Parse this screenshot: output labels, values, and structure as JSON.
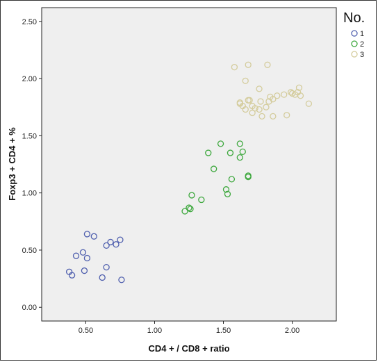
{
  "chart_data": {
    "type": "scatter",
    "title": "",
    "xlabel": "CD4 + / CD8 +  ratio",
    "ylabel": "Foxp3 + CD4 + %",
    "xlim": [
      0.18,
      2.32
    ],
    "ylim": [
      -0.12,
      2.62
    ],
    "x_ticks": [
      0.5,
      1.0,
      1.5,
      2.0
    ],
    "x_tick_labels": [
      "0.50",
      "1.00",
      "1.50",
      "2.00"
    ],
    "y_ticks": [
      0.0,
      0.5,
      1.0,
      1.5,
      2.0,
      2.5
    ],
    "y_tick_labels": [
      "0.00",
      "0.50",
      "1.00",
      "1.50",
      "2.00",
      "2.50"
    ],
    "grid": false,
    "plot_background": "#efefef",
    "legend": {
      "title": "No.",
      "placement": "top-right-outside"
    },
    "series": [
      {
        "name": "1",
        "color": "#4f5fae",
        "points": [
          [
            0.51,
            0.64
          ],
          [
            0.56,
            0.62
          ],
          [
            0.43,
            0.45
          ],
          [
            0.48,
            0.48
          ],
          [
            0.51,
            0.43
          ],
          [
            0.65,
            0.54
          ],
          [
            0.68,
            0.57
          ],
          [
            0.72,
            0.55
          ],
          [
            0.75,
            0.59
          ],
          [
            0.38,
            0.31
          ],
          [
            0.4,
            0.28
          ],
          [
            0.49,
            0.32
          ],
          [
            0.65,
            0.35
          ],
          [
            0.62,
            0.26
          ],
          [
            0.76,
            0.24
          ]
        ]
      },
      {
        "name": "2",
        "color": "#3ea83e",
        "points": [
          [
            1.48,
            1.43
          ],
          [
            1.39,
            1.35
          ],
          [
            1.55,
            1.35
          ],
          [
            1.62,
            1.43
          ],
          [
            1.64,
            1.36
          ],
          [
            1.62,
            1.31
          ],
          [
            1.43,
            1.21
          ],
          [
            1.56,
            1.12
          ],
          [
            1.68,
            1.15
          ],
          [
            1.68,
            1.14
          ],
          [
            1.52,
            1.03
          ],
          [
            1.53,
            0.99
          ],
          [
            1.27,
            0.98
          ],
          [
            1.34,
            0.94
          ],
          [
            1.25,
            0.87
          ],
          [
            1.26,
            0.86
          ],
          [
            1.22,
            0.84
          ]
        ]
      },
      {
        "name": "3",
        "color": "#d4cc9c",
        "points": [
          [
            1.58,
            2.1
          ],
          [
            1.68,
            2.12
          ],
          [
            1.82,
            2.12
          ],
          [
            1.66,
            1.98
          ],
          [
            1.76,
            1.91
          ],
          [
            1.62,
            1.78
          ],
          [
            1.64,
            1.76
          ],
          [
            1.66,
            1.73
          ],
          [
            1.68,
            1.81
          ],
          [
            1.69,
            1.81
          ],
          [
            1.71,
            1.76
          ],
          [
            1.73,
            1.74
          ],
          [
            1.71,
            1.7
          ],
          [
            1.76,
            1.73
          ],
          [
            1.77,
            1.8
          ],
          [
            1.78,
            1.67
          ],
          [
            1.81,
            1.75
          ],
          [
            1.83,
            1.8
          ],
          [
            1.84,
            1.84
          ],
          [
            1.86,
            1.82
          ],
          [
            1.86,
            1.67
          ],
          [
            1.89,
            1.85
          ],
          [
            1.94,
            1.86
          ],
          [
            1.96,
            1.68
          ],
          [
            1.99,
            1.88
          ],
          [
            2.0,
            1.87
          ],
          [
            2.02,
            1.86
          ],
          [
            2.04,
            1.88
          ],
          [
            2.05,
            1.92
          ],
          [
            2.06,
            1.85
          ],
          [
            2.12,
            1.78
          ],
          [
            1.62,
            1.79
          ]
        ]
      }
    ]
  }
}
